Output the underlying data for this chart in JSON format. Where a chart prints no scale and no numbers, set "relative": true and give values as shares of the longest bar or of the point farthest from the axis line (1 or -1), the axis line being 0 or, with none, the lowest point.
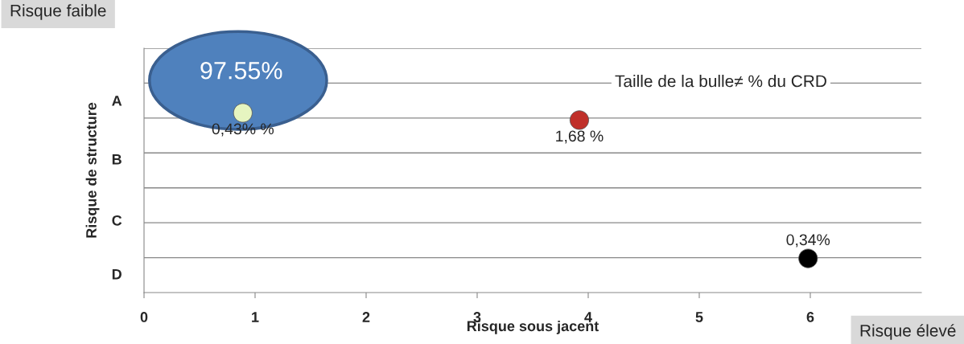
{
  "chart_data": {
    "type": "scatter",
    "relative": true,
    "xlabel": "Risque sous jacent",
    "ylabel": "Risque de structure",
    "x": [
      0.89,
      3.92,
      5.98
    ],
    "values": [
      1,
      0.96,
      0.19
    ],
    "colors": [
      "#e6f5c0",
      "#c0302a",
      "#000000"
    ],
    "xlim": [
      0,
      7
    ],
    "xticks": [
      0,
      1,
      2,
      3,
      4,
      5,
      6
    ],
    "grid": "y",
    "annotations": [
      "Risque faible",
      "Risque élevé",
      "Taille de la bulle≠ % du CRD",
      "97.55%",
      "A",
      "B",
      "C",
      "D",
      {
        "text": "0,43% %",
        "x": 0.89,
        "y": 1
      },
      {
        "text": "1,68 %",
        "x": 3.92,
        "y": 0.96
      },
      {
        "text": "0,34%",
        "x": 5.98,
        "y": 0.19
      }
    ]
  }
}
